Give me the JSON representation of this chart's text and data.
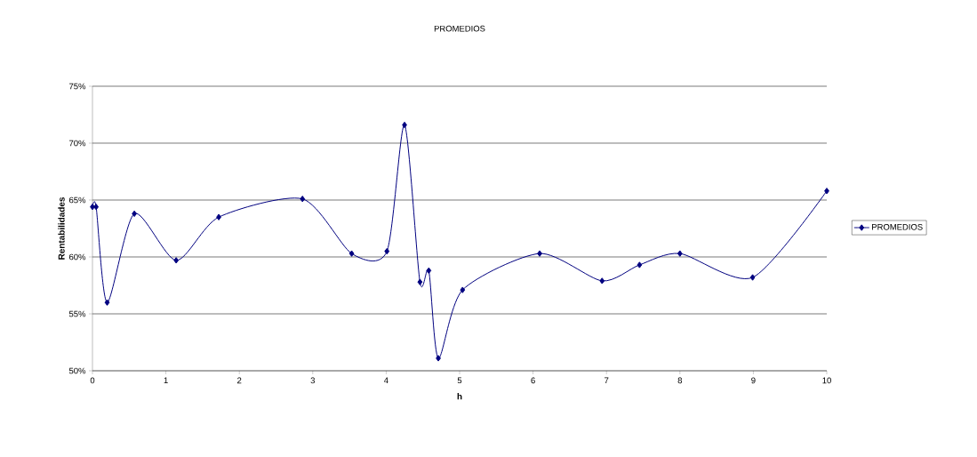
{
  "chart_data": {
    "type": "line",
    "title": "PROMEDIOS",
    "xlabel": "h",
    "ylabel": "Rentabilidades",
    "series": [
      {
        "name": "PROMEDIOS",
        "color": "#000080",
        "x": [
          0,
          0.05,
          0.2,
          0.57,
          1.14,
          1.72,
          2.86,
          3.53,
          4.01,
          4.25,
          4.46,
          4.58,
          4.71,
          5.04,
          6.09,
          6.94,
          7.45,
          8.0,
          8.99,
          10.0
        ],
        "values": [
          64.4,
          64.4,
          56.0,
          63.8,
          59.7,
          63.5,
          65.1,
          60.3,
          60.5,
          71.6,
          57.8,
          58.8,
          51.1,
          57.1,
          60.3,
          57.9,
          59.3,
          60.3,
          58.2,
          65.8
        ]
      }
    ],
    "xlim": [
      0,
      10
    ],
    "xticks": [
      0,
      1,
      2,
      3,
      4,
      5,
      6,
      7,
      8,
      9,
      10
    ],
    "ylim": [
      50,
      75
    ],
    "yticks": [
      {
        "value": 50,
        "label": "50%"
      },
      {
        "value": 55,
        "label": "55%"
      },
      {
        "value": 60,
        "label": "60%"
      },
      {
        "value": 65,
        "label": "65%"
      },
      {
        "value": 70,
        "label": "70%"
      },
      {
        "value": 75,
        "label": "75%"
      }
    ],
    "grid": "y",
    "legend": "right",
    "marker": "diamond",
    "line_style": "solid"
  }
}
